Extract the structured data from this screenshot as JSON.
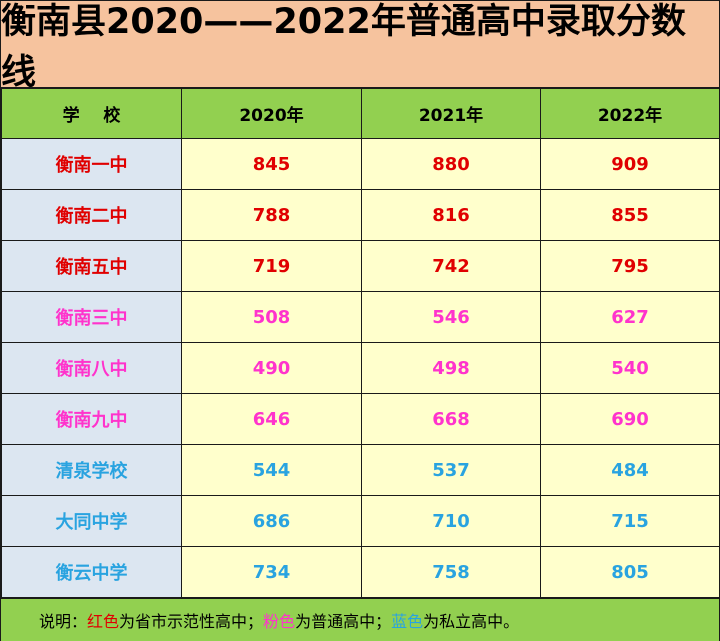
{
  "title": "衡南县2020——2022年普通高中录取分数线",
  "header": {
    "school": "学    校",
    "years": [
      "2020年",
      "2021年",
      "2022年"
    ]
  },
  "colors": {
    "red": "#e00000",
    "pink": "#ff33cc",
    "blue": "#29a3e0",
    "header_bg": "#92d050",
    "title_bg": "#f6c39e"
  },
  "rows": [
    {
      "school": "衡南一中",
      "s2020": "845",
      "s2021": "880",
      "s2022": "909",
      "color": "red"
    },
    {
      "school": "衡南二中",
      "s2020": "788",
      "s2021": "816",
      "s2022": "855",
      "color": "red"
    },
    {
      "school": "衡南五中",
      "s2020": "719",
      "s2021": "742",
      "s2022": "795",
      "color": "red"
    },
    {
      "school": "衡南三中",
      "s2020": "508",
      "s2021": "546",
      "s2022": "627",
      "color": "pink"
    },
    {
      "school": "衡南八中",
      "s2020": "490",
      "s2021": "498",
      "s2022": "540",
      "color": "pink"
    },
    {
      "school": "衡南九中",
      "s2020": "646",
      "s2021": "668",
      "s2022": "690",
      "color": "pink"
    },
    {
      "school": "清泉学校",
      "s2020": "544",
      "s2021": "537",
      "s2022": "484",
      "color": "blue"
    },
    {
      "school": "大同中学",
      "s2020": "686",
      "s2021": "710",
      "s2022": "715",
      "color": "blue"
    },
    {
      "school": "衡云中学",
      "s2020": "734",
      "s2021": "758",
      "s2022": "805",
      "color": "blue"
    }
  ],
  "note": {
    "prefix": "说明：",
    "red_label": "红色",
    "red_text": "为省市示范性高中；",
    "pink_label": "粉色",
    "pink_text": "为普通高中；",
    "blue_label": "蓝色",
    "blue_text": "为私立高中。"
  }
}
